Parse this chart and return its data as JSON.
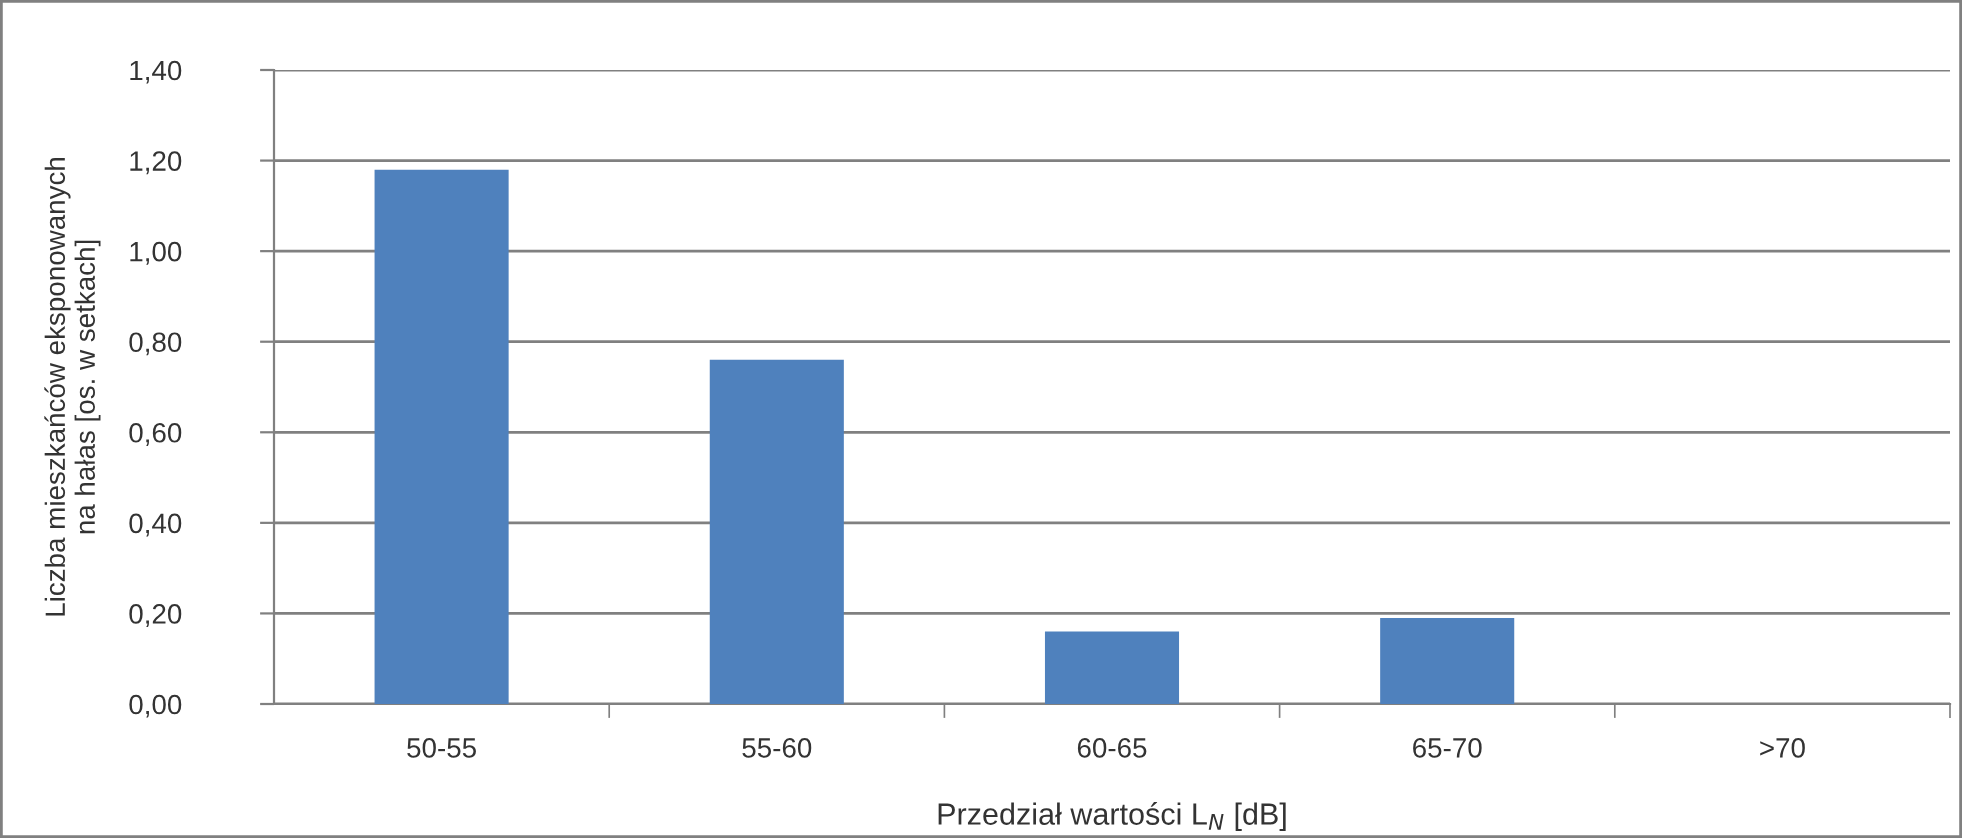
{
  "chart_data": {
    "type": "bar",
    "xlabel": "Przedział wartości L$_{N}$ [dB]",
    "ylabel": "Liczba mieszkańców eksponowanych\nna hałas [os. w setkach]",
    "categories": [
      "50-55",
      "55-60",
      "60-65",
      "65-70",
      ">70"
    ],
    "values": [
      1.18,
      0.76,
      0.16,
      0.19,
      0
    ],
    "color": "#4f81bd",
    "ylim": [
      0,
      1.4
    ],
    "yticks": [
      {
        "value": 0,
        "label": "0,00"
      },
      {
        "value": 0.2,
        "label": "0,20"
      },
      {
        "value": 0.4,
        "label": "0,40"
      },
      {
        "value": 0.6,
        "label": "0,60"
      },
      {
        "value": 0.8,
        "label": "0,80"
      },
      {
        "value": 1.0,
        "label": "1,00"
      },
      {
        "value": 1.2,
        "label": "1,20"
      },
      {
        "value": 1.4,
        "label": "1,40"
      }
    ],
    "grid": "y",
    "legend": false
  }
}
